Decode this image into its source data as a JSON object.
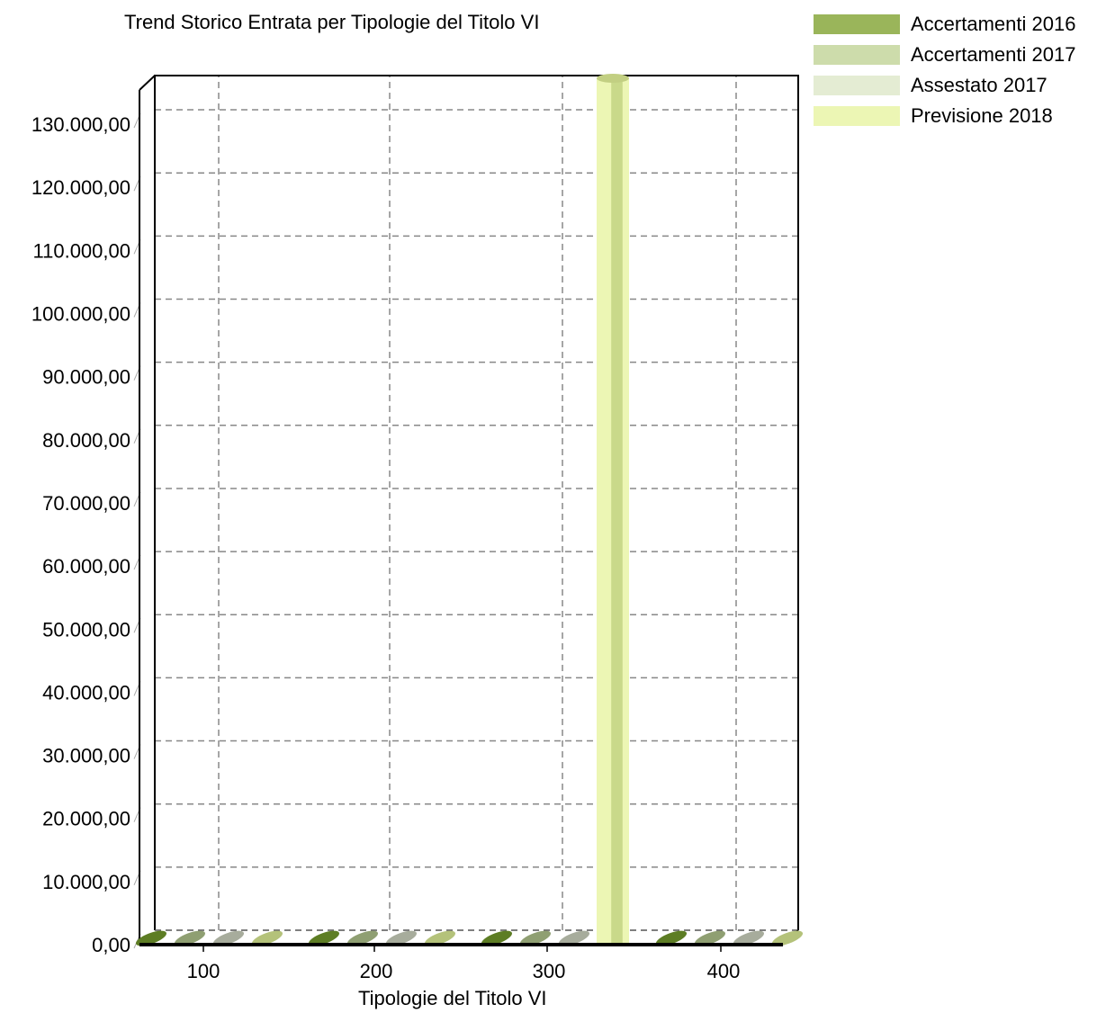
{
  "chart_data": {
    "type": "bar",
    "title": "Trend Storico Entrata per Tipologie del Titolo VI",
    "xlabel": "Tipologie del Titolo VI",
    "ylabel": "",
    "categories": [
      "100",
      "200",
      "300",
      "400"
    ],
    "series": [
      {
        "name": "Accertamenti 2016",
        "values": [
          0,
          0,
          0,
          0
        ],
        "color": "#9ab55a"
      },
      {
        "name": "Accertamenti 2017",
        "values": [
          0,
          0,
          0,
          0
        ],
        "color": "#cddcab"
      },
      {
        "name": "Assestato 2017",
        "values": [
          0,
          0,
          0,
          0
        ],
        "color": "#e4ecd3"
      },
      {
        "name": "Previsione 2018",
        "values": [
          0,
          0,
          135000,
          0
        ],
        "color": "#ecf6b4"
      }
    ],
    "ylim": [
      0,
      130000
    ],
    "ytick_step": 10000,
    "ytick_labels": [
      "0,00",
      "10.000,00",
      "20.000,00",
      "30.000,00",
      "40.000,00",
      "50.000,00",
      "60.000,00",
      "70.000,00",
      "80.000,00",
      "90.000,00",
      "100.000,00",
      "110.000,00",
      "120.000,00",
      "130.000,00"
    ],
    "grid": true,
    "legend_position": "top-right"
  }
}
